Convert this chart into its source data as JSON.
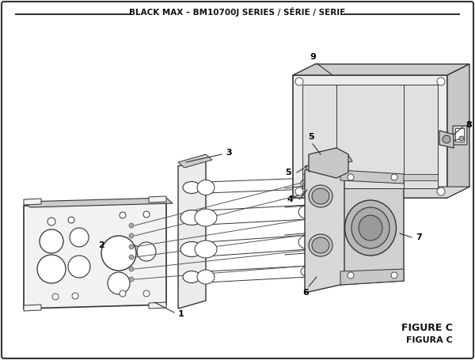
{
  "title": "BLACK MAX – BM10700J SERIES / SÉRIE / SERIE",
  "figure_label": "FIGURE C",
  "figura_label": "FIGURA C",
  "bg_color": "#ffffff",
  "line_color": "#333333",
  "part_fill": "#f0f0f0",
  "part_edge": "#333333",
  "dark_fill": "#cccccc",
  "mid_fill": "#e0e0e0"
}
